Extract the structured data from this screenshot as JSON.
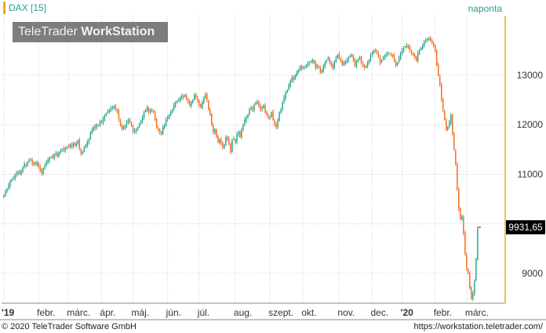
{
  "header": {
    "title": "DAX [15]",
    "period": "naponta",
    "watermark_brand": "TeleTrader",
    "watermark_product": "WorkStation"
  },
  "footer": {
    "copyright": "© 2020 TeleTrader Software GmbH",
    "url": "https://workstation.teletrader.com/"
  },
  "colors": {
    "up": "#22a38a",
    "down": "#f26a1b",
    "grid": "#cfcfcf",
    "price_badge_bg": "#000000",
    "price_badge_fg": "#ffffff",
    "axis_accent": "#f5a623"
  },
  "chart_data": {
    "type": "candlestick",
    "instrument": "DAX",
    "last_value_label": "9931,65",
    "last_value": 9931.65,
    "ylim": [
      8400,
      14200
    ],
    "y_ticks": [
      {
        "value": 9000,
        "label": "9000"
      },
      {
        "value": 10000,
        "label": "10000"
      },
      {
        "value": 11000,
        "label": "11000"
      },
      {
        "value": 12000,
        "label": "12000"
      },
      {
        "value": 13000,
        "label": "13000"
      }
    ],
    "x_ticks": [
      {
        "pos": 0,
        "label": "'19",
        "bold": true
      },
      {
        "pos": 22,
        "label": "febr.",
        "bold": false
      },
      {
        "pos": 41,
        "label": "márc.",
        "bold": false
      },
      {
        "pos": 62,
        "label": "ápr.",
        "bold": false
      },
      {
        "pos": 82,
        "label": "máj.",
        "bold": false
      },
      {
        "pos": 104,
        "label": "jún.",
        "bold": false
      },
      {
        "pos": 124,
        "label": "júl.",
        "bold": false
      },
      {
        "pos": 147,
        "label": "aug.",
        "bold": false
      },
      {
        "pos": 169,
        "label": "szept.",
        "bold": false
      },
      {
        "pos": 190,
        "label": "okt.",
        "bold": false
      },
      {
        "pos": 213,
        "label": "nov.",
        "bold": false
      },
      {
        "pos": 234,
        "label": "dec.",
        "bold": false
      },
      {
        "pos": 253,
        "label": "'20",
        "bold": true
      },
      {
        "pos": 274,
        "label": "febr.",
        "bold": false
      },
      {
        "pos": 294,
        "label": "márc.",
        "bold": false
      }
    ],
    "total_sessions": 318,
    "close": [
      10580,
      10650,
      10700,
      10780,
      10860,
      10900,
      10920,
      10990,
      11020,
      11050,
      11010,
      11060,
      11140,
      11210,
      11180,
      11250,
      11280,
      11300,
      11210,
      11230,
      11200,
      11240,
      11150,
      11080,
      11020,
      11120,
      11180,
      11260,
      11290,
      11330,
      11350,
      11330,
      11400,
      11420,
      11380,
      11440,
      11480,
      11500,
      11490,
      11520,
      11550,
      11560,
      11600,
      11560,
      11620,
      11580,
      11620,
      11680,
      11520,
      11420,
      11460,
      11530,
      11590,
      11650,
      11700,
      11850,
      11900,
      11960,
      11930,
      12000,
      11980,
      12060,
      12050,
      12120,
      12180,
      12230,
      12270,
      12300,
      12330,
      12350,
      12380,
      12300,
      12260,
      12100,
      12010,
      11900,
      11950,
      11980,
      12050,
      12100,
      12040,
      11980,
      11850,
      11880,
      11900,
      11950,
      12000,
      12080,
      12150,
      12250,
      12300,
      12350,
      12250,
      12280,
      12300,
      12250,
      12100,
      11950,
      11900,
      11850,
      11800,
      11950,
      12000,
      12100,
      12150,
      12200,
      12250,
      12300,
      12400,
      12450,
      12480,
      12500,
      12550,
      12580,
      12550,
      12600,
      12520,
      12450,
      12400,
      12450,
      12500,
      12600,
      12550,
      12480,
      12400,
      12350,
      12450,
      12550,
      12600,
      12500,
      12300,
      12200,
      12000,
      11850,
      11900,
      11750,
      11650,
      11700,
      11620,
      11550,
      11600,
      11750,
      11700,
      11620,
      11450,
      11700,
      11720,
      11650,
      11800,
      11850,
      11750,
      11900,
      12000,
      12100,
      12150,
      12200,
      12300,
      12350,
      12300,
      12400,
      12450,
      12470,
      12380,
      12300,
      12350,
      12400,
      12250,
      12200,
      12150,
      12150,
      12250,
      12100,
      12000,
      11950,
      12100,
      12250,
      12300,
      12450,
      12550,
      12650,
      12700,
      12800,
      12890,
      12950,
      12900,
      13000,
      13050,
      13100,
      13150,
      13180,
      13130,
      13150,
      13200,
      13230,
      13250,
      13280,
      13300,
      13250,
      13150,
      13200,
      13150,
      13050,
      13100,
      13180,
      13250,
      13300,
      13350,
      13250,
      13200,
      13150,
      13280,
      13350,
      13400,
      13350,
      13300,
      13200,
      13250,
      13280,
      13300,
      13350,
      13400,
      13400,
      13300,
      13200,
      13280,
      13320,
      13350,
      13250,
      13200,
      13150,
      13180,
      13250,
      13300,
      13400,
      13450,
      13500,
      13480,
      13450,
      13380,
      13250,
      13300,
      13350,
      13400,
      13420,
      13450,
      13430,
      13400,
      13380,
      13300,
      13200,
      13250,
      13350,
      13450,
      13500,
      13550,
      13580,
      13600,
      13550,
      13500,
      13450,
      13400,
      13350,
      13300,
      13450,
      13500,
      13550,
      13600,
      13680,
      13700,
      13720,
      13750,
      13700,
      13650,
      13600,
      13500,
      13200,
      13000,
      12800,
      12500,
      12300,
      12100,
      11900,
      11950,
      12050,
      12200,
      11800,
      11500,
      11200,
      10700,
      10300,
      10100,
      10150,
      9800,
      9400,
      9100,
      9000,
      8700,
      8500,
      8600,
      8850,
      9300,
      9900
    ]
  }
}
